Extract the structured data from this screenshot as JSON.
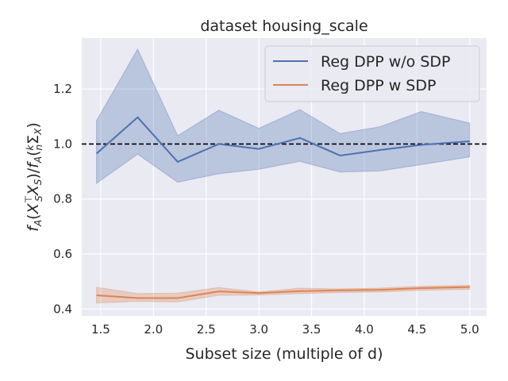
{
  "chart_data": {
    "type": "line",
    "title": "dataset housing_scale",
    "xlabel": "Subset size (multiple of d)",
    "ylabel": "f_A(X_S^⊤X_S)/f_A(k/n Σ_X)",
    "xlim": [
      1.32,
      5.16
    ],
    "ylim": [
      0.375,
      1.385
    ],
    "xticks": [
      1.5,
      2.0,
      2.5,
      3.0,
      3.5,
      4.0,
      4.5,
      5.0
    ],
    "xtick_labels": [
      "1.5",
      "2.0",
      "2.5",
      "3.0",
      "3.5",
      "4.0",
      "4.5",
      "5.0"
    ],
    "yticks": [
      0.4,
      0.6,
      0.8,
      1.0,
      1.2
    ],
    "ytick_labels": [
      "0.4",
      "0.6",
      "0.8",
      "1.0",
      "1.2"
    ],
    "grid": true,
    "legend_position": "top-right",
    "reference_line": {
      "y": 1.0,
      "style": "dashed",
      "color": "#000000"
    },
    "x": [
      1.46,
      1.85,
      2.23,
      2.62,
      3.0,
      3.39,
      3.77,
      4.15,
      4.54,
      5.0
    ],
    "series": [
      {
        "name": "Reg DPP w/o SDP",
        "color": "#4c72b0",
        "values": [
          0.965,
          1.097,
          0.935,
          1.0,
          0.982,
          1.022,
          0.958,
          0.978,
          0.997,
          1.01
        ],
        "lower": [
          0.857,
          0.963,
          0.861,
          0.892,
          0.908,
          0.937,
          0.898,
          0.902,
          0.925,
          0.953
        ],
        "upper": [
          1.085,
          1.345,
          1.03,
          1.123,
          1.057,
          1.125,
          1.038,
          1.063,
          1.118,
          1.076
        ]
      },
      {
        "name": "Reg DPP w SDP",
        "color": "#dd8452",
        "values": [
          0.45,
          0.44,
          0.44,
          0.464,
          0.458,
          0.465,
          0.468,
          0.47,
          0.476,
          0.48
        ],
        "lower": [
          0.422,
          0.428,
          0.426,
          0.45,
          0.451,
          0.456,
          0.46,
          0.462,
          0.468,
          0.472
        ],
        "upper": [
          0.479,
          0.456,
          0.458,
          0.478,
          0.462,
          0.476,
          0.473,
          0.476,
          0.483,
          0.486
        ]
      }
    ]
  }
}
